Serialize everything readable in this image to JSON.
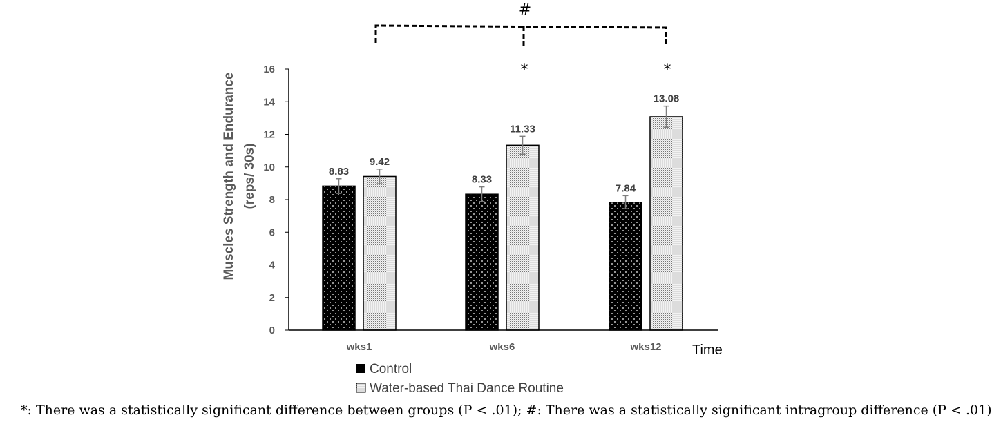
{
  "chart_data": {
    "type": "bar",
    "categories": [
      "wks1",
      "wks6",
      "wks12"
    ],
    "series": [
      {
        "name": "Control",
        "values": [
          8.83,
          8.33,
          7.84
        ],
        "errors": [
          0.45,
          0.45,
          0.4
        ],
        "color": "#000000"
      },
      {
        "name": "Water-based Thai Dance Routine",
        "values": [
          9.42,
          11.33,
          13.08
        ],
        "errors": [
          0.45,
          0.55,
          0.65
        ],
        "color": "#d9d9d9"
      }
    ],
    "data_labels": [
      [
        "8.83",
        "8.33",
        "7.84"
      ],
      [
        "9.42",
        "11.33",
        "13.08"
      ]
    ],
    "ylabel_lines": [
      "Muscles Strength and Endurance",
      "(reps/ 30s)"
    ],
    "xlabel": "Time",
    "ylim": [
      0,
      16
    ],
    "yticks": [
      "0",
      "2",
      "4",
      "6",
      "8",
      "10",
      "12",
      "14",
      "16"
    ],
    "significance": {
      "between_groups": [
        "*",
        "*"
      ],
      "intragroup": "#"
    },
    "legend_position": "bottom-left",
    "grid": false
  },
  "footnote": "*: There was a statistically significant difference between groups (P < .01); #: There was a statistically significant intragroup difference (P < .01)"
}
